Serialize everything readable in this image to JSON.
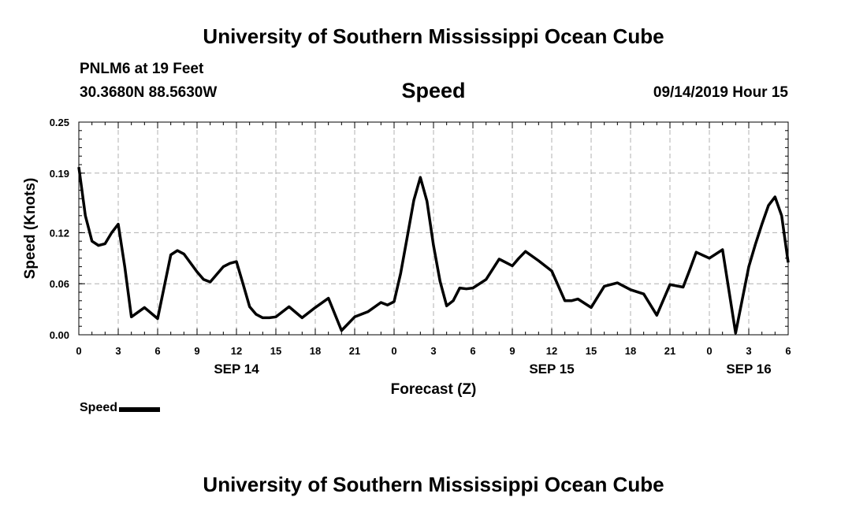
{
  "header": {
    "title": "University of Southern Mississippi Ocean Cube",
    "station": "PNLM6 at 19 Feet",
    "coordinates": "30.3680N 88.5630W",
    "variable": "Speed",
    "datetime": "09/14/2019 Hour 15"
  },
  "footer": {
    "title": "University of Southern Mississippi Ocean Cube"
  },
  "legend": {
    "label": "Speed"
  },
  "colors": {
    "line": "#000000",
    "grid": "#b0b0b0"
  },
  "chart_data": {
    "type": "line",
    "title": "Speed",
    "xlabel": "Forecast (Z)",
    "ylabel": "Speed (Knots)",
    "xlim": [
      0,
      54
    ],
    "ylim": [
      0,
      0.25
    ],
    "yticks": [
      0.0,
      0.06,
      0.12,
      0.19,
      0.25
    ],
    "ytick_labels": [
      "0.00",
      "0.06",
      "0.12",
      "0.19",
      "0.25"
    ],
    "xticks": [
      0,
      3,
      6,
      9,
      12,
      15,
      18,
      21,
      24,
      27,
      30,
      33,
      36,
      39,
      42,
      45,
      48,
      51,
      54
    ],
    "xtick_labels": [
      "0",
      "3",
      "6",
      "9",
      "12",
      "15",
      "18",
      "21",
      "0",
      "3",
      "6",
      "9",
      "12",
      "15",
      "18",
      "21",
      "0",
      "3",
      "6"
    ],
    "day_labels": [
      {
        "x": 12,
        "label": "SEP 14"
      },
      {
        "x": 36,
        "label": "SEP 15"
      },
      {
        "x": 51,
        "label": "SEP 16"
      }
    ],
    "grid": true,
    "series": [
      {
        "name": "Speed",
        "x": [
          0,
          0.5,
          1,
          1.5,
          2,
          2.5,
          3,
          3.5,
          4,
          5,
          6,
          7,
          7.5,
          8,
          9,
          9.5,
          10,
          11,
          11.5,
          12,
          12.5,
          13,
          13.5,
          14,
          14.5,
          15,
          16,
          17,
          18,
          19,
          20,
          21,
          22,
          23,
          23.5,
          24,
          24.5,
          25,
          25.5,
          26,
          26.5,
          27,
          27.5,
          28,
          28.5,
          29,
          29.5,
          30,
          31,
          32,
          32.5,
          33,
          33.5,
          34,
          35,
          36,
          37,
          37.5,
          38,
          39,
          40,
          41,
          42,
          43,
          44,
          45,
          46,
          46.5,
          47,
          48,
          49,
          50,
          51,
          51.5,
          52,
          52.5,
          53,
          53.5,
          54
        ],
        "values": [
          0.197,
          0.14,
          0.11,
          0.105,
          0.107,
          0.12,
          0.13,
          0.08,
          0.021,
          0.032,
          0.019,
          0.094,
          0.099,
          0.095,
          0.074,
          0.065,
          0.062,
          0.08,
          0.084,
          0.086,
          0.06,
          0.033,
          0.024,
          0.02,
          0.02,
          0.021,
          0.033,
          0.02,
          0.032,
          0.043,
          0.005,
          0.021,
          0.027,
          0.038,
          0.035,
          0.039,
          0.072,
          0.115,
          0.158,
          0.185,
          0.157,
          0.105,
          0.063,
          0.034,
          0.04,
          0.055,
          0.054,
          0.055,
          0.065,
          0.089,
          0.085,
          0.081,
          0.09,
          0.098,
          0.087,
          0.075,
          0.04,
          0.04,
          0.042,
          0.032,
          0.057,
          0.061,
          0.053,
          0.048,
          0.023,
          0.059,
          0.056,
          0.076,
          0.097,
          0.09,
          0.1,
          0.002,
          0.08,
          0.106,
          0.13,
          0.152,
          0.162,
          0.14,
          0.085
        ]
      }
    ]
  }
}
